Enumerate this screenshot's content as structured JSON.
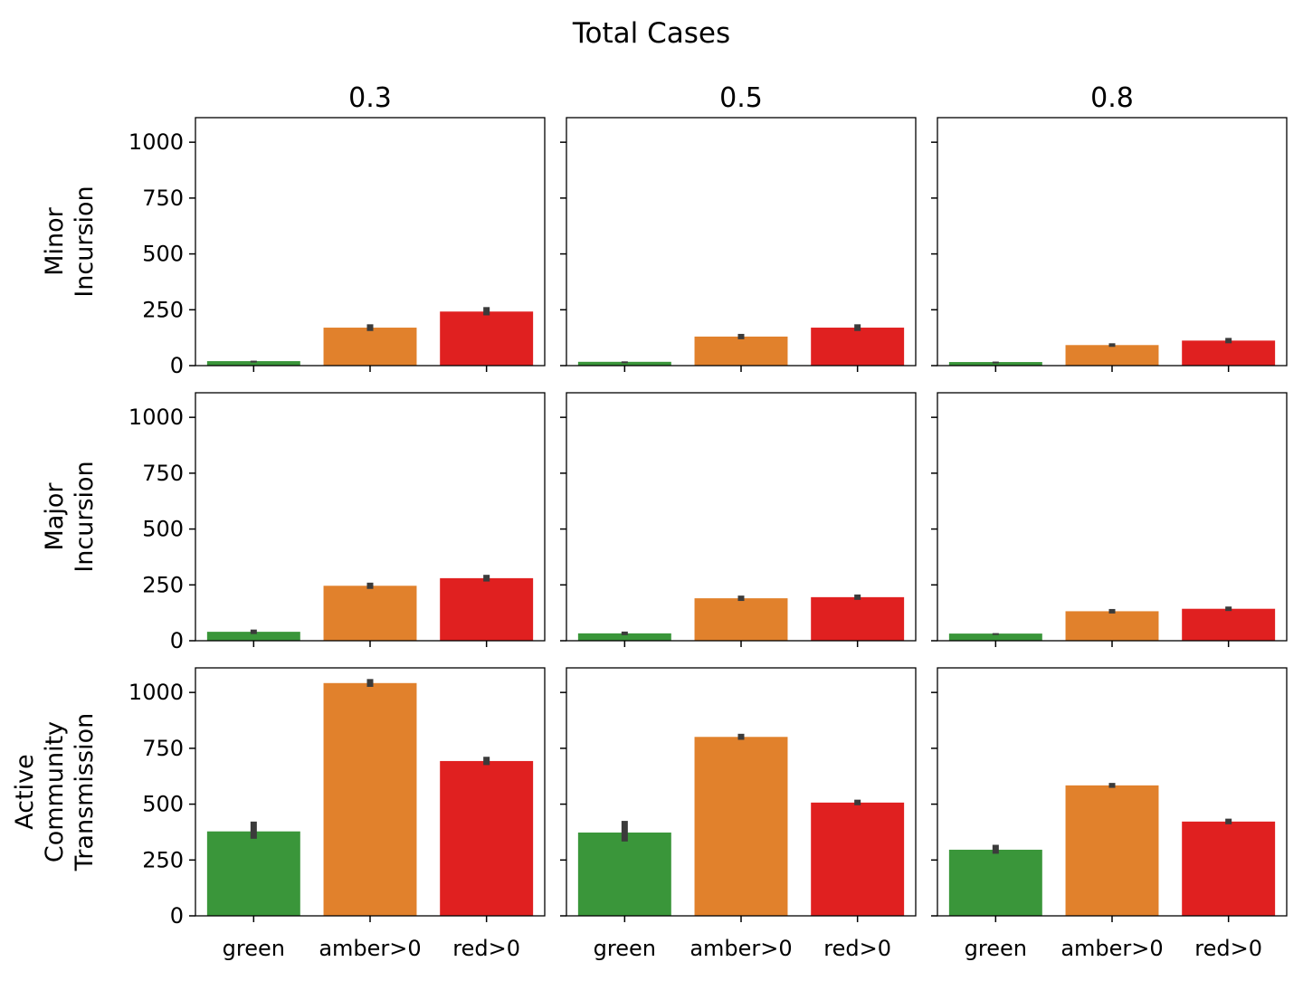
{
  "chart_data": {
    "type": "bar",
    "title": "Total Cases",
    "categories": [
      "green",
      "amber>0",
      "red>0"
    ],
    "column_titles": [
      "0.3",
      "0.5",
      "0.8"
    ],
    "row_labels": [
      [
        "Minor",
        "Incursion"
      ],
      [
        "Major",
        "Incursion"
      ],
      [
        "Active",
        "Community",
        "Transmission"
      ]
    ],
    "ylim": [
      0,
      1110
    ],
    "yticks": [
      0,
      250,
      500,
      750,
      1000
    ],
    "ytick_labels": [
      "0",
      "250",
      "500",
      "750",
      "1000"
    ],
    "grid": false,
    "legend": "none",
    "colors": {
      "green": "#3a963a",
      "amber>0": "#e1812c",
      "red>0": "#e02020",
      "error_bar": "#3b3b3b"
    },
    "panels": [
      {
        "row": "Minor Incursion",
        "column": "0.3",
        "values": [
          20,
          170,
          242
        ],
        "errors": [
          [
            18,
            22
          ],
          [
            155,
            185
          ],
          [
            225,
            262
          ]
        ]
      },
      {
        "row": "Minor Incursion",
        "column": "0.5",
        "values": [
          17,
          130,
          170
        ],
        "errors": [
          [
            15,
            19
          ],
          [
            118,
            142
          ],
          [
            155,
            185
          ]
        ]
      },
      {
        "row": "Minor Incursion",
        "column": "0.8",
        "values": [
          16,
          92,
          112
        ],
        "errors": [
          [
            14,
            18
          ],
          [
            84,
            100
          ],
          [
            100,
            124
          ]
        ]
      },
      {
        "row": "Major Incursion",
        "column": "0.3",
        "values": [
          40,
          246,
          280
        ],
        "errors": [
          [
            30,
            50
          ],
          [
            232,
            260
          ],
          [
            265,
            295
          ]
        ]
      },
      {
        "row": "Major Incursion",
        "column": "0.5",
        "values": [
          33,
          190,
          195
        ],
        "errors": [
          [
            25,
            41
          ],
          [
            178,
            202
          ],
          [
            183,
            207
          ]
        ]
      },
      {
        "row": "Major Incursion",
        "column": "0.8",
        "values": [
          32,
          132,
          143
        ],
        "errors": [
          [
            30,
            34
          ],
          [
            122,
            142
          ],
          [
            133,
            153
          ]
        ]
      },
      {
        "row": "Active Community Transmission",
        "column": "0.3",
        "values": [
          378,
          1042,
          693
        ],
        "errors": [
          [
            345,
            422
          ],
          [
            1025,
            1060
          ],
          [
            675,
            712
          ]
        ]
      },
      {
        "row": "Active Community Transmission",
        "column": "0.5",
        "values": [
          373,
          801,
          507
        ],
        "errors": [
          [
            333,
            425
          ],
          [
            788,
            815
          ],
          [
            495,
            520
          ]
        ]
      },
      {
        "row": "Active Community Transmission",
        "column": "0.8",
        "values": [
          296,
          584,
          422
        ],
        "errors": [
          [
            278,
            318
          ],
          [
            573,
            595
          ],
          [
            410,
            435
          ]
        ]
      }
    ]
  }
}
